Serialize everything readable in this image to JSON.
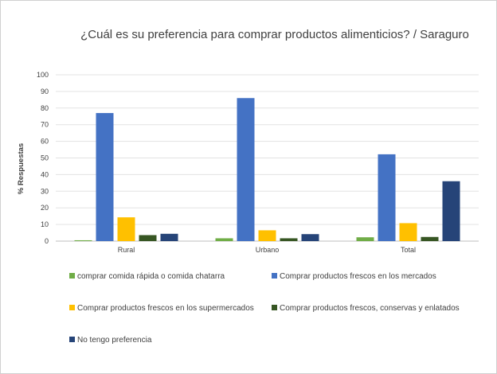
{
  "chart_data": {
    "type": "bar",
    "title": "¿Cuál es su preferencia para comprar productos alimenticios? / Saraguro",
    "ylabel": "% Respuestas",
    "xlabel": "",
    "ylim": [
      0,
      100
    ],
    "yticks": [
      0,
      10,
      20,
      30,
      40,
      50,
      60,
      70,
      80,
      90,
      100
    ],
    "grid": true,
    "legend_position": "bottom",
    "categories": [
      "Rural",
      "Urbano",
      "Total"
    ],
    "series": [
      {
        "name": "comprar comida rápida o comida chatarra",
        "color": "#70ad47",
        "values": [
          0.5,
          1.7,
          2.3
        ]
      },
      {
        "name": "Comprar productos frescos en los mercados",
        "color": "#4472c4",
        "values": [
          77.0,
          86.0,
          52.2
        ]
      },
      {
        "name": "Comprar productos frescos en los supermercados",
        "color": "#ffc000",
        "values": [
          14.3,
          6.5,
          10.8
        ]
      },
      {
        "name": "Comprar productos frescos, conservas y enlatados",
        "color": "#375623",
        "values": [
          3.6,
          1.7,
          2.5
        ]
      },
      {
        "name": "No tengo preferencia",
        "color": "#264478",
        "values": [
          4.4,
          4.2,
          36.0
        ]
      }
    ]
  }
}
